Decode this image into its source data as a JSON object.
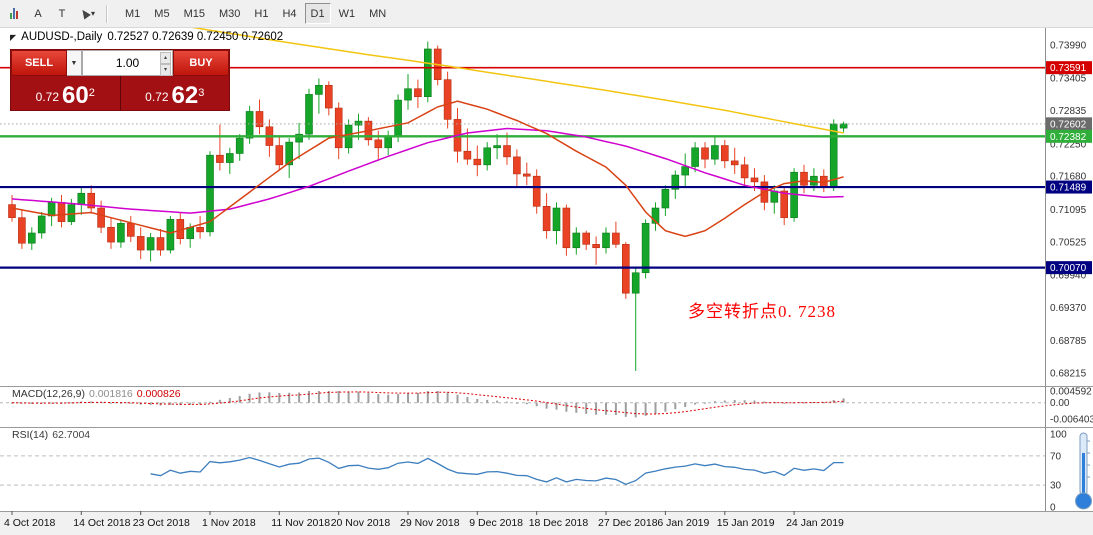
{
  "toolbar": {
    "tools": [
      {
        "name": "chart-window-icon",
        "kind": "bars"
      },
      {
        "name": "arrow-tool",
        "kind": "label",
        "label": "A"
      },
      {
        "name": "text-tool",
        "kind": "label",
        "label": "T"
      },
      {
        "name": "cursor-tool",
        "kind": "cursor",
        "caret": "▾"
      }
    ],
    "timeframes": [
      "M1",
      "M5",
      "M15",
      "M30",
      "H1",
      "H4",
      "D1",
      "W1",
      "MN"
    ],
    "active": "D1"
  },
  "chart_header": {
    "expand_glyph": "◤",
    "title": "AUDUSD-,Daily",
    "ohlc": "0.72527 0.72639 0.72450 0.72602"
  },
  "trade_panel": {
    "sell_label": "SELL",
    "buy_label": "BUY",
    "dropdown_glyph": "▼",
    "spin_up_glyph": "▴",
    "spin_down_glyph": "▾",
    "lot_value": "1.00",
    "bid_prefix": "0.72",
    "bid_big": "60",
    "bid_sup": "2",
    "ask_prefix": "0.72",
    "ask_big": "62",
    "ask_sup": "3"
  },
  "annotation": {
    "text": "多空转折点0. 7238",
    "color": "#fe0000"
  },
  "indicators": {
    "macd": {
      "label": "MACD(12,26,9)",
      "value_main": "0.001816",
      "value_signal": "0.000826",
      "axis_labels": [
        "0.004592",
        "0.00",
        "-0.006403"
      ]
    },
    "rsi": {
      "label": "RSI(14)",
      "value": "62.7004",
      "axis_labels": [
        "100",
        "70",
        "30",
        "0"
      ],
      "levels": [
        70,
        30
      ]
    }
  },
  "price_axis": {
    "scale": [
      "0.73990",
      "0.73405",
      "0.72835",
      "0.72250",
      "0.71680",
      "0.71095",
      "0.70525",
      "0.69940",
      "0.69370",
      "0.68785",
      "0.68215"
    ],
    "highlights": [
      {
        "value": "0.73591",
        "color": "#d40000",
        "role": "resistance"
      },
      {
        "value": "0.72602",
        "color": "#6b6b6b",
        "role": "current-bid"
      },
      {
        "value": "0.72382",
        "color": "#2fae3a",
        "role": "pivot"
      },
      {
        "value": "0.71489",
        "color": "#000080",
        "role": "support-1"
      },
      {
        "value": "0.70070",
        "color": "#000080",
        "role": "support-2"
      }
    ]
  },
  "time_axis": {
    "labels": [
      {
        "text": "4 Oct 2018",
        "bar": 0
      },
      {
        "text": "14 Oct 2018",
        "bar": 7
      },
      {
        "text": "23 Oct 2018",
        "bar": 13
      },
      {
        "text": "1 Nov 2018",
        "bar": 20
      },
      {
        "text": "11 Nov 2018",
        "bar": 27
      },
      {
        "text": "20 Nov 2018",
        "bar": 33
      },
      {
        "text": "29 Nov 2018",
        "bar": 40
      },
      {
        "text": "9 Dec 2018",
        "bar": 47
      },
      {
        "text": "18 Dec 2018",
        "bar": 53
      },
      {
        "text": "27 Dec 2018",
        "bar": 60
      },
      {
        "text": "6 Jan 2019",
        "bar": 66
      },
      {
        "text": "15 Jan 2019",
        "bar": 72
      },
      {
        "text": "24 Jan 2019",
        "bar": 79
      }
    ]
  },
  "chart_data": {
    "type": "candlestick",
    "symbol": "AUDUSD",
    "period": "Daily",
    "current_bar": {
      "open": 0.72527,
      "high": 0.72639,
      "low": 0.7245,
      "close": 0.72602
    },
    "price_range": {
      "top": 0.7399,
      "bottom": 0.68215
    },
    "colors": {
      "up": "#14a529",
      "down": "#ea4224",
      "up_edge": "#0c7a1c",
      "down_edge": "#b52d12"
    },
    "candles": [
      [
        0.7118,
        0.7135,
        0.7088,
        0.7095
      ],
      [
        0.7095,
        0.7108,
        0.704,
        0.705
      ],
      [
        0.705,
        0.7078,
        0.7038,
        0.7068
      ],
      [
        0.7068,
        0.7105,
        0.7058,
        0.7098
      ],
      [
        0.7098,
        0.713,
        0.708,
        0.7122
      ],
      [
        0.7122,
        0.7135,
        0.7078,
        0.7088
      ],
      [
        0.7088,
        0.7128,
        0.7082,
        0.7118
      ],
      [
        0.7118,
        0.7148,
        0.71,
        0.7138
      ],
      [
        0.7138,
        0.7152,
        0.7102,
        0.7112
      ],
      [
        0.7112,
        0.7125,
        0.7068,
        0.7078
      ],
      [
        0.7078,
        0.7095,
        0.704,
        0.7052
      ],
      [
        0.7052,
        0.7092,
        0.7042,
        0.7085
      ],
      [
        0.7085,
        0.7098,
        0.7052,
        0.7062
      ],
      [
        0.7062,
        0.7078,
        0.7022,
        0.7038
      ],
      [
        0.7038,
        0.7068,
        0.7018,
        0.706
      ],
      [
        0.706,
        0.7075,
        0.7028,
        0.7038
      ],
      [
        0.7038,
        0.7098,
        0.7032,
        0.7092
      ],
      [
        0.7092,
        0.7105,
        0.7048,
        0.7058
      ],
      [
        0.7058,
        0.7085,
        0.7042,
        0.7078
      ],
      [
        0.7078,
        0.7098,
        0.7058,
        0.707
      ],
      [
        0.707,
        0.7212,
        0.7062,
        0.7205
      ],
      [
        0.7205,
        0.7259,
        0.7178,
        0.7192
      ],
      [
        0.7192,
        0.7218,
        0.7172,
        0.7208
      ],
      [
        0.7208,
        0.7242,
        0.7195,
        0.7235
      ],
      [
        0.7235,
        0.7292,
        0.7225,
        0.7282
      ],
      [
        0.7282,
        0.7303,
        0.7242,
        0.7255
      ],
      [
        0.7255,
        0.7268,
        0.7202,
        0.7222
      ],
      [
        0.7222,
        0.7238,
        0.7178,
        0.7188
      ],
      [
        0.7188,
        0.7235,
        0.7165,
        0.7228
      ],
      [
        0.7228,
        0.7262,
        0.7198,
        0.7242
      ],
      [
        0.7242,
        0.7322,
        0.7232,
        0.7312
      ],
      [
        0.7312,
        0.734,
        0.7278,
        0.7328
      ],
      [
        0.7328,
        0.7335,
        0.7275,
        0.7288
      ],
      [
        0.7288,
        0.7298,
        0.7198,
        0.7218
      ],
      [
        0.7218,
        0.7268,
        0.7208,
        0.7258
      ],
      [
        0.7258,
        0.7278,
        0.7232,
        0.7265
      ],
      [
        0.7265,
        0.7272,
        0.7222,
        0.7232
      ],
      [
        0.7232,
        0.7248,
        0.7198,
        0.7218
      ],
      [
        0.7218,
        0.7248,
        0.7205,
        0.7238
      ],
      [
        0.7238,
        0.7312,
        0.7228,
        0.7302
      ],
      [
        0.7302,
        0.7348,
        0.7285,
        0.7322
      ],
      [
        0.7322,
        0.7338,
        0.7288,
        0.7308
      ],
      [
        0.7308,
        0.7405,
        0.7298,
        0.7392
      ],
      [
        0.7392,
        0.7398,
        0.7328,
        0.7338
      ],
      [
        0.7338,
        0.7352,
        0.7252,
        0.7268
      ],
      [
        0.7268,
        0.7288,
        0.7192,
        0.7212
      ],
      [
        0.7212,
        0.7252,
        0.7188,
        0.7198
      ],
      [
        0.7198,
        0.7222,
        0.7168,
        0.7188
      ],
      [
        0.7188,
        0.7228,
        0.7178,
        0.7218
      ],
      [
        0.7218,
        0.7242,
        0.7198,
        0.7222
      ],
      [
        0.7222,
        0.7245,
        0.7188,
        0.7202
      ],
      [
        0.7202,
        0.7215,
        0.7148,
        0.7172
      ],
      [
        0.7172,
        0.7192,
        0.7152,
        0.7168
      ],
      [
        0.7168,
        0.718,
        0.7102,
        0.7115
      ],
      [
        0.7115,
        0.7138,
        0.7058,
        0.7072
      ],
      [
        0.7072,
        0.7122,
        0.7048,
        0.7112
      ],
      [
        0.7112,
        0.7118,
        0.7028,
        0.7042
      ],
      [
        0.7042,
        0.7078,
        0.703,
        0.7068
      ],
      [
        0.7068,
        0.7072,
        0.7038,
        0.7048
      ],
      [
        0.7048,
        0.7062,
        0.7012,
        0.7042
      ],
      [
        0.7042,
        0.7078,
        0.7032,
        0.7068
      ],
      [
        0.7068,
        0.7088,
        0.7042,
        0.7048
      ],
      [
        0.7048,
        0.7052,
        0.6952,
        0.6962
      ],
      [
        0.6962,
        0.7008,
        0.6825,
        0.6998
      ],
      [
        0.6998,
        0.7092,
        0.6988,
        0.7085
      ],
      [
        0.7085,
        0.7122,
        0.7072,
        0.7112
      ],
      [
        0.7112,
        0.7152,
        0.7098,
        0.7145
      ],
      [
        0.7145,
        0.7178,
        0.7128,
        0.717
      ],
      [
        0.717,
        0.7208,
        0.7148,
        0.7185
      ],
      [
        0.7185,
        0.7228,
        0.7175,
        0.7218
      ],
      [
        0.7218,
        0.7228,
        0.7182,
        0.7198
      ],
      [
        0.7198,
        0.7238,
        0.7188,
        0.7222
      ],
      [
        0.7222,
        0.7232,
        0.7182,
        0.7195
      ],
      [
        0.7195,
        0.7218,
        0.7172,
        0.7188
      ],
      [
        0.7188,
        0.7202,
        0.7148,
        0.7165
      ],
      [
        0.7165,
        0.7182,
        0.7142,
        0.7158
      ],
      [
        0.7158,
        0.717,
        0.7108,
        0.7122
      ],
      [
        0.7122,
        0.7152,
        0.7102,
        0.7142
      ],
      [
        0.7142,
        0.7148,
        0.7082,
        0.7095
      ],
      [
        0.7095,
        0.7182,
        0.7088,
        0.7175
      ],
      [
        0.7175,
        0.7188,
        0.7138,
        0.7152
      ],
      [
        0.7152,
        0.7182,
        0.7142,
        0.7168
      ],
      [
        0.7168,
        0.718,
        0.714,
        0.715
      ],
      [
        0.715,
        0.7268,
        0.7142,
        0.726
      ],
      [
        0.72527,
        0.72639,
        0.7245,
        0.72602
      ]
    ],
    "hlines": [
      {
        "name": "resistance-line",
        "price": 0.73591,
        "color": "#d40000",
        "width": 1.6
      },
      {
        "name": "pivot-line",
        "price": 0.72382,
        "color": "#2fae3a",
        "width": 2.4
      },
      {
        "name": "support-line-1",
        "price": 0.71489,
        "color": "#000080",
        "width": 2.2
      },
      {
        "name": "support-line-2",
        "price": 0.7007,
        "color": "#000080",
        "width": 2.2
      }
    ],
    "bid_line": {
      "price": 0.72602,
      "color": "#a8a8a8"
    },
    "moving_averages": [
      {
        "name": "ma-long-yellow",
        "color": "#f2c511",
        "points": [
          [
            12,
            0.7448
          ],
          [
            20,
            0.7425
          ],
          [
            28,
            0.7403
          ],
          [
            34,
            0.7387
          ],
          [
            40,
            0.7372
          ],
          [
            44,
            0.7362
          ],
          [
            48,
            0.7351
          ],
          [
            54,
            0.7335
          ],
          [
            60,
            0.7319
          ],
          [
            66,
            0.7302
          ],
          [
            72,
            0.7284
          ],
          [
            78,
            0.7264
          ],
          [
            84,
            0.7244
          ]
        ]
      },
      {
        "name": "ma-mid-magenta",
        "color": "#cf00cf",
        "points": [
          [
            0,
            0.7128
          ],
          [
            6,
            0.712
          ],
          [
            12,
            0.711
          ],
          [
            18,
            0.7103
          ],
          [
            22,
            0.711
          ],
          [
            26,
            0.7128
          ],
          [
            30,
            0.715
          ],
          [
            34,
            0.7177
          ],
          [
            38,
            0.7203
          ],
          [
            42,
            0.7227
          ],
          [
            46,
            0.7244
          ],
          [
            50,
            0.7252
          ],
          [
            54,
            0.7248
          ],
          [
            58,
            0.7237
          ],
          [
            62,
            0.7221
          ],
          [
            66,
            0.7199
          ],
          [
            70,
            0.7174
          ],
          [
            74,
            0.7152
          ],
          [
            78,
            0.7138
          ],
          [
            82,
            0.7131
          ],
          [
            84,
            0.7132
          ]
        ]
      },
      {
        "name": "ma-short-red",
        "color": "#d84315",
        "points": [
          [
            0,
            0.7112
          ],
          [
            4,
            0.7099
          ],
          [
            8,
            0.7104
          ],
          [
            12,
            0.7086
          ],
          [
            16,
            0.7068
          ],
          [
            20,
            0.7088
          ],
          [
            24,
            0.714
          ],
          [
            28,
            0.7192
          ],
          [
            32,
            0.7235
          ],
          [
            36,
            0.7248
          ],
          [
            40,
            0.7262
          ],
          [
            43,
            0.729
          ],
          [
            45,
            0.73
          ],
          [
            48,
            0.7286
          ],
          [
            51,
            0.7266
          ],
          [
            54,
            0.7243
          ],
          [
            57,
            0.7212
          ],
          [
            60,
            0.7184
          ],
          [
            62,
            0.7152
          ],
          [
            64,
            0.7105
          ],
          [
            66,
            0.7072
          ],
          [
            68,
            0.7062
          ],
          [
            70,
            0.7072
          ],
          [
            72,
            0.7094
          ],
          [
            74,
            0.7118
          ],
          [
            76,
            0.714
          ],
          [
            78,
            0.7155
          ],
          [
            80,
            0.716
          ],
          [
            82,
            0.7157
          ],
          [
            84,
            0.7167
          ]
        ]
      }
    ],
    "macd_params": {
      "fast": 12,
      "slow": 26,
      "signal": 9
    },
    "macd_scale": {
      "max": 0.004592,
      "min": -0.006403
    },
    "rsi_params": {
      "period": 14,
      "levels": [
        70,
        30
      ]
    }
  }
}
